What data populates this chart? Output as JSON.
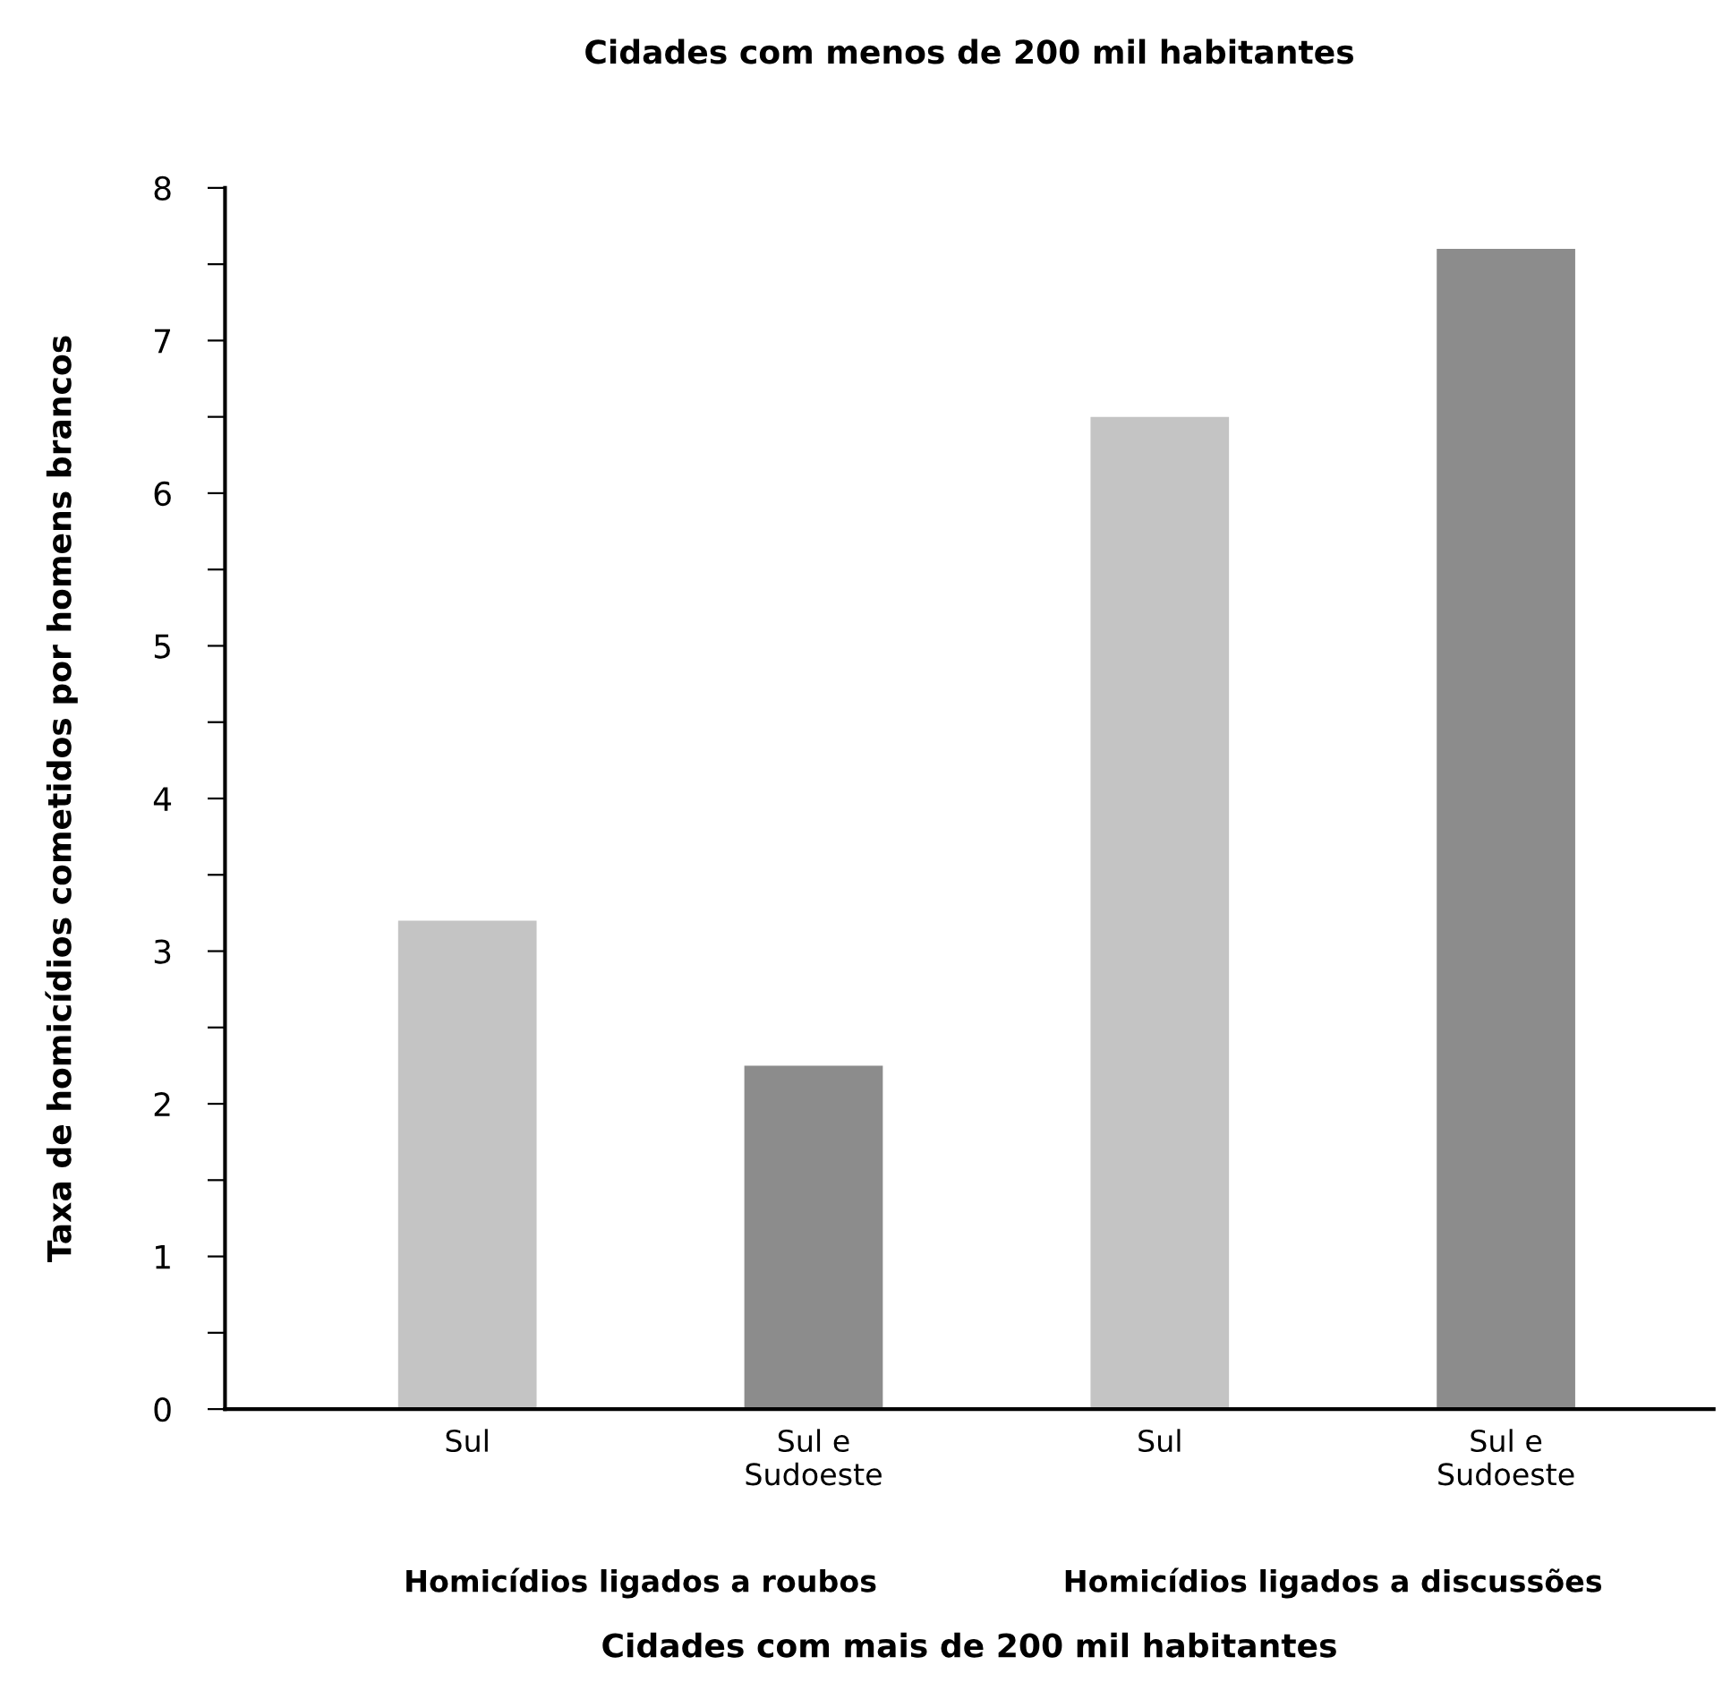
{
  "chart_data": {
    "type": "bar",
    "title": "Cidades com menos de 200 mil habitantes",
    "ylabel": "Taxa de homicídios cometidos por homens brancos",
    "categories": [
      "Sul",
      "Sul e\nSudoeste",
      "Sul",
      "Sul e\nSudoeste"
    ],
    "values": [
      3.2,
      2.25,
      6.5,
      7.6
    ],
    "colors": [
      "#c4c4c4",
      "#8c8c8c",
      "#c4c4c4",
      "#8c8c8c"
    ],
    "ylim": [
      0,
      8
    ],
    "yticks": [
      0,
      {
        "value": 0.5,
        "label": null
      },
      1,
      {
        "value": 1.5,
        "label": null
      },
      2,
      {
        "value": 2.5,
        "label": null
      },
      3,
      {
        "value": 3.5,
        "label": null
      },
      4,
      {
        "value": 4.5,
        "label": null
      },
      5,
      {
        "value": 5.5,
        "label": null
      },
      6,
      {
        "value": 6.5,
        "label": null
      },
      7,
      {
        "value": 7.5,
        "label": null
      },
      8
    ],
    "annotations": [
      "Homicídios ligados a roubos",
      "Homicídios ligados a discussões",
      "Cidades com mais de 200 mil habitantes"
    ],
    "grid": false,
    "legend": false
  }
}
